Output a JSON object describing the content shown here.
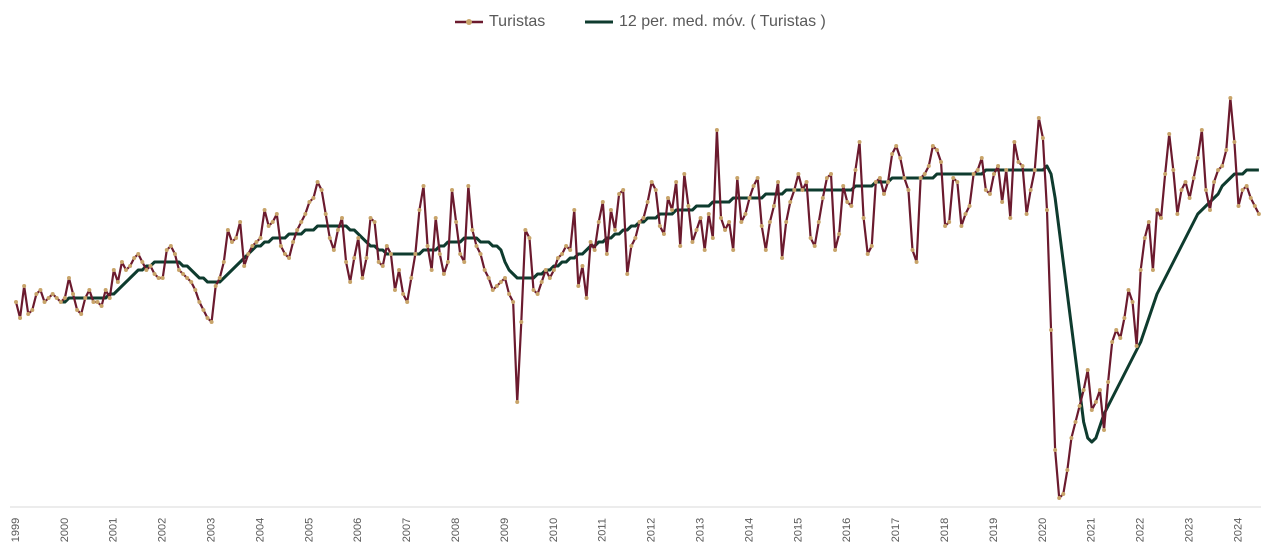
{
  "chart_data": {
    "type": "line",
    "categories": [
      "1999",
      null,
      null,
      null,
      null,
      null,
      null,
      null,
      null,
      null,
      null,
      null,
      "2000",
      null,
      null,
      null,
      null,
      null,
      null,
      null,
      null,
      null,
      null,
      null,
      "2001",
      null,
      null,
      null,
      null,
      null,
      null,
      null,
      null,
      null,
      null,
      null,
      "2002",
      null,
      null,
      null,
      null,
      null,
      null,
      null,
      null,
      null,
      null,
      null,
      "2003",
      null,
      null,
      null,
      null,
      null,
      null,
      null,
      null,
      null,
      null,
      null,
      "2004",
      null,
      null,
      null,
      null,
      null,
      null,
      null,
      null,
      null,
      null,
      null,
      "2005",
      null,
      null,
      null,
      null,
      null,
      null,
      null,
      null,
      null,
      null,
      null,
      "2006",
      null,
      null,
      null,
      null,
      null,
      null,
      null,
      null,
      null,
      null,
      null,
      "2007",
      null,
      null,
      null,
      null,
      null,
      null,
      null,
      null,
      null,
      null,
      null,
      "2008",
      null,
      null,
      null,
      null,
      null,
      null,
      null,
      null,
      null,
      null,
      null,
      "2009",
      null,
      null,
      null,
      null,
      null,
      null,
      null,
      null,
      null,
      null,
      null,
      "2010",
      null,
      null,
      null,
      null,
      null,
      null,
      null,
      null,
      null,
      null,
      null,
      "2011",
      null,
      null,
      null,
      null,
      null,
      null,
      null,
      null,
      null,
      null,
      null,
      "2012",
      null,
      null,
      null,
      null,
      null,
      null,
      null,
      null,
      null,
      null,
      null,
      "2013",
      null,
      null,
      null,
      null,
      null,
      null,
      null,
      null,
      null,
      null,
      null,
      "2014",
      null,
      null,
      null,
      null,
      null,
      null,
      null,
      null,
      null,
      null,
      null,
      "2015",
      null,
      null,
      null,
      null,
      null,
      null,
      null,
      null,
      null,
      null,
      null,
      "2016",
      null,
      null,
      null,
      null,
      null,
      null,
      null,
      null,
      null,
      null,
      null,
      "2017",
      null,
      null,
      null,
      null,
      null,
      null,
      null,
      null,
      null,
      null,
      null,
      "2018",
      null,
      null,
      null,
      null,
      null,
      null,
      null,
      null,
      null,
      null,
      null,
      "2019",
      null,
      null,
      null,
      null,
      null,
      null,
      null,
      null,
      null,
      null,
      null,
      "2020",
      null,
      null,
      null,
      null,
      null,
      null,
      null,
      null,
      null,
      null,
      null,
      "2021",
      null,
      null,
      null,
      null,
      null,
      null,
      null,
      null,
      null,
      null,
      null,
      "2022",
      null,
      null,
      null,
      null,
      null,
      null,
      null,
      null,
      null,
      null,
      null,
      "2023",
      null,
      null,
      null,
      null,
      null,
      null,
      null,
      null,
      null,
      null,
      null,
      "2024",
      null,
      null,
      null,
      null,
      null
    ],
    "series": [
      {
        "name": "Turistas",
        "color": "#6b1a2e",
        "marker_color": "#c8a46a",
        "values": [
          52,
          48,
          56,
          49,
          50,
          54,
          55,
          52,
          53,
          54,
          53,
          52,
          53,
          58,
          54,
          50,
          49,
          53,
          55,
          52,
          52,
          51,
          55,
          53,
          60,
          57,
          62,
          60,
          61,
          63,
          64,
          62,
          60,
          61,
          59,
          58,
          58,
          65,
          66,
          64,
          60,
          59,
          58,
          57,
          55,
          52,
          50,
          48,
          47,
          56,
          58,
          62,
          70,
          67,
          68,
          72,
          61,
          64,
          66,
          67,
          68,
          75,
          71,
          72,
          74,
          66,
          64,
          63,
          67,
          70,
          72,
          74,
          77,
          78,
          82,
          80,
          74,
          68,
          65,
          70,
          73,
          62,
          57,
          63,
          68,
          58,
          63,
          73,
          72,
          62,
          61,
          66,
          64,
          55,
          60,
          54,
          52,
          58,
          64,
          75,
          81,
          66,
          60,
          73,
          64,
          59,
          62,
          80,
          72,
          64,
          62,
          81,
          70,
          66,
          64,
          60,
          58,
          55,
          56,
          57,
          58,
          54,
          52,
          27,
          47,
          70,
          68,
          55,
          54,
          57,
          60,
          58,
          60,
          63,
          64,
          66,
          65,
          75,
          56,
          61,
          53,
          67,
          65,
          72,
          77,
          64,
          75,
          70,
          79,
          80,
          59,
          66,
          68,
          72,
          73,
          77,
          82,
          80,
          71,
          69,
          78,
          75,
          82,
          66,
          84,
          76,
          67,
          70,
          73,
          65,
          74,
          68,
          95,
          73,
          70,
          72,
          65,
          83,
          72,
          74,
          78,
          81,
          83,
          71,
          65,
          72,
          76,
          82,
          63,
          72,
          77,
          80,
          84,
          80,
          82,
          68,
          66,
          72,
          78,
          83,
          84,
          65,
          69,
          81,
          77,
          76,
          85,
          92,
          73,
          64,
          66,
          82,
          83,
          79,
          82,
          89,
          91,
          88,
          83,
          80,
          65,
          62,
          83,
          84,
          86,
          91,
          90,
          87,
          71,
          72,
          83,
          82,
          71,
          74,
          76,
          84,
          85,
          88,
          80,
          79,
          84,
          86,
          77,
          85,
          73,
          92,
          87,
          86,
          74,
          80,
          85,
          98,
          93,
          75,
          45,
          15,
          3,
          4,
          10,
          18,
          22,
          26,
          30,
          35,
          25,
          27,
          30,
          20,
          32,
          42,
          45,
          43,
          48,
          55,
          52,
          41,
          60,
          68,
          72,
          60,
          75,
          73,
          84,
          94,
          85,
          74,
          80,
          82,
          78,
          83,
          88,
          95,
          80,
          75,
          82,
          85,
          86,
          90,
          103,
          92,
          76,
          80,
          81,
          78,
          76,
          74
        ]
      },
      {
        "name": "12 per. med. móv. ( Turistas )",
        "color": "#0e3b2e",
        "values": [
          null,
          null,
          null,
          null,
          null,
          null,
          null,
          null,
          null,
          null,
          null,
          52,
          52,
          53,
          53,
          53,
          53,
          53,
          53,
          53,
          53,
          53,
          53,
          54,
          54,
          55,
          56,
          57,
          58,
          59,
          60,
          60,
          61,
          61,
          62,
          62,
          62,
          62,
          62,
          62,
          62,
          61,
          61,
          60,
          59,
          58,
          58,
          57,
          57,
          57,
          57,
          58,
          59,
          60,
          61,
          62,
          63,
          64,
          65,
          66,
          66,
          67,
          67,
          68,
          68,
          68,
          68,
          69,
          69,
          69,
          69,
          70,
          70,
          70,
          71,
          71,
          71,
          71,
          71,
          71,
          71,
          71,
          70,
          70,
          69,
          68,
          67,
          66,
          66,
          65,
          65,
          64,
          64,
          64,
          64,
          64,
          64,
          64,
          64,
          64,
          65,
          65,
          65,
          65,
          66,
          66,
          67,
          67,
          67,
          67,
          68,
          68,
          68,
          68,
          67,
          67,
          67,
          66,
          66,
          65,
          62,
          60,
          59,
          58,
          58,
          58,
          58,
          58,
          59,
          59,
          60,
          60,
          61,
          61,
          62,
          62,
          63,
          63,
          64,
          64,
          65,
          66,
          66,
          67,
          67,
          68,
          68,
          69,
          69,
          70,
          70,
          71,
          71,
          72,
          72,
          73,
          73,
          73,
          74,
          74,
          74,
          74,
          75,
          75,
          75,
          75,
          75,
          76,
          76,
          76,
          76,
          77,
          77,
          77,
          77,
          77,
          78,
          78,
          78,
          78,
          78,
          78,
          78,
          78,
          79,
          79,
          79,
          79,
          79,
          80,
          80,
          80,
          80,
          80,
          80,
          80,
          80,
          80,
          80,
          80,
          80,
          80,
          80,
          80,
          80,
          80,
          81,
          81,
          81,
          81,
          81,
          82,
          82,
          82,
          82,
          83,
          83,
          83,
          83,
          83,
          83,
          83,
          83,
          83,
          83,
          83,
          84,
          84,
          84,
          84,
          84,
          84,
          84,
          84,
          84,
          84,
          84,
          84,
          85,
          85,
          85,
          85,
          85,
          85,
          85,
          85,
          85,
          85,
          85,
          85,
          85,
          85,
          85,
          86,
          84,
          78,
          70,
          62,
          54,
          46,
          38,
          30,
          22,
          18,
          17,
          18,
          21,
          24,
          26,
          28,
          30,
          32,
          34,
          36,
          38,
          40,
          42,
          45,
          48,
          51,
          54,
          56,
          58,
          60,
          62,
          64,
          66,
          68,
          70,
          72,
          74,
          75,
          76,
          77,
          78,
          79,
          81,
          82,
          83,
          84,
          84,
          84,
          85,
          85,
          85,
          85
        ]
      }
    ],
    "ylim": [
      0,
      110
    ],
    "legend": "top"
  }
}
